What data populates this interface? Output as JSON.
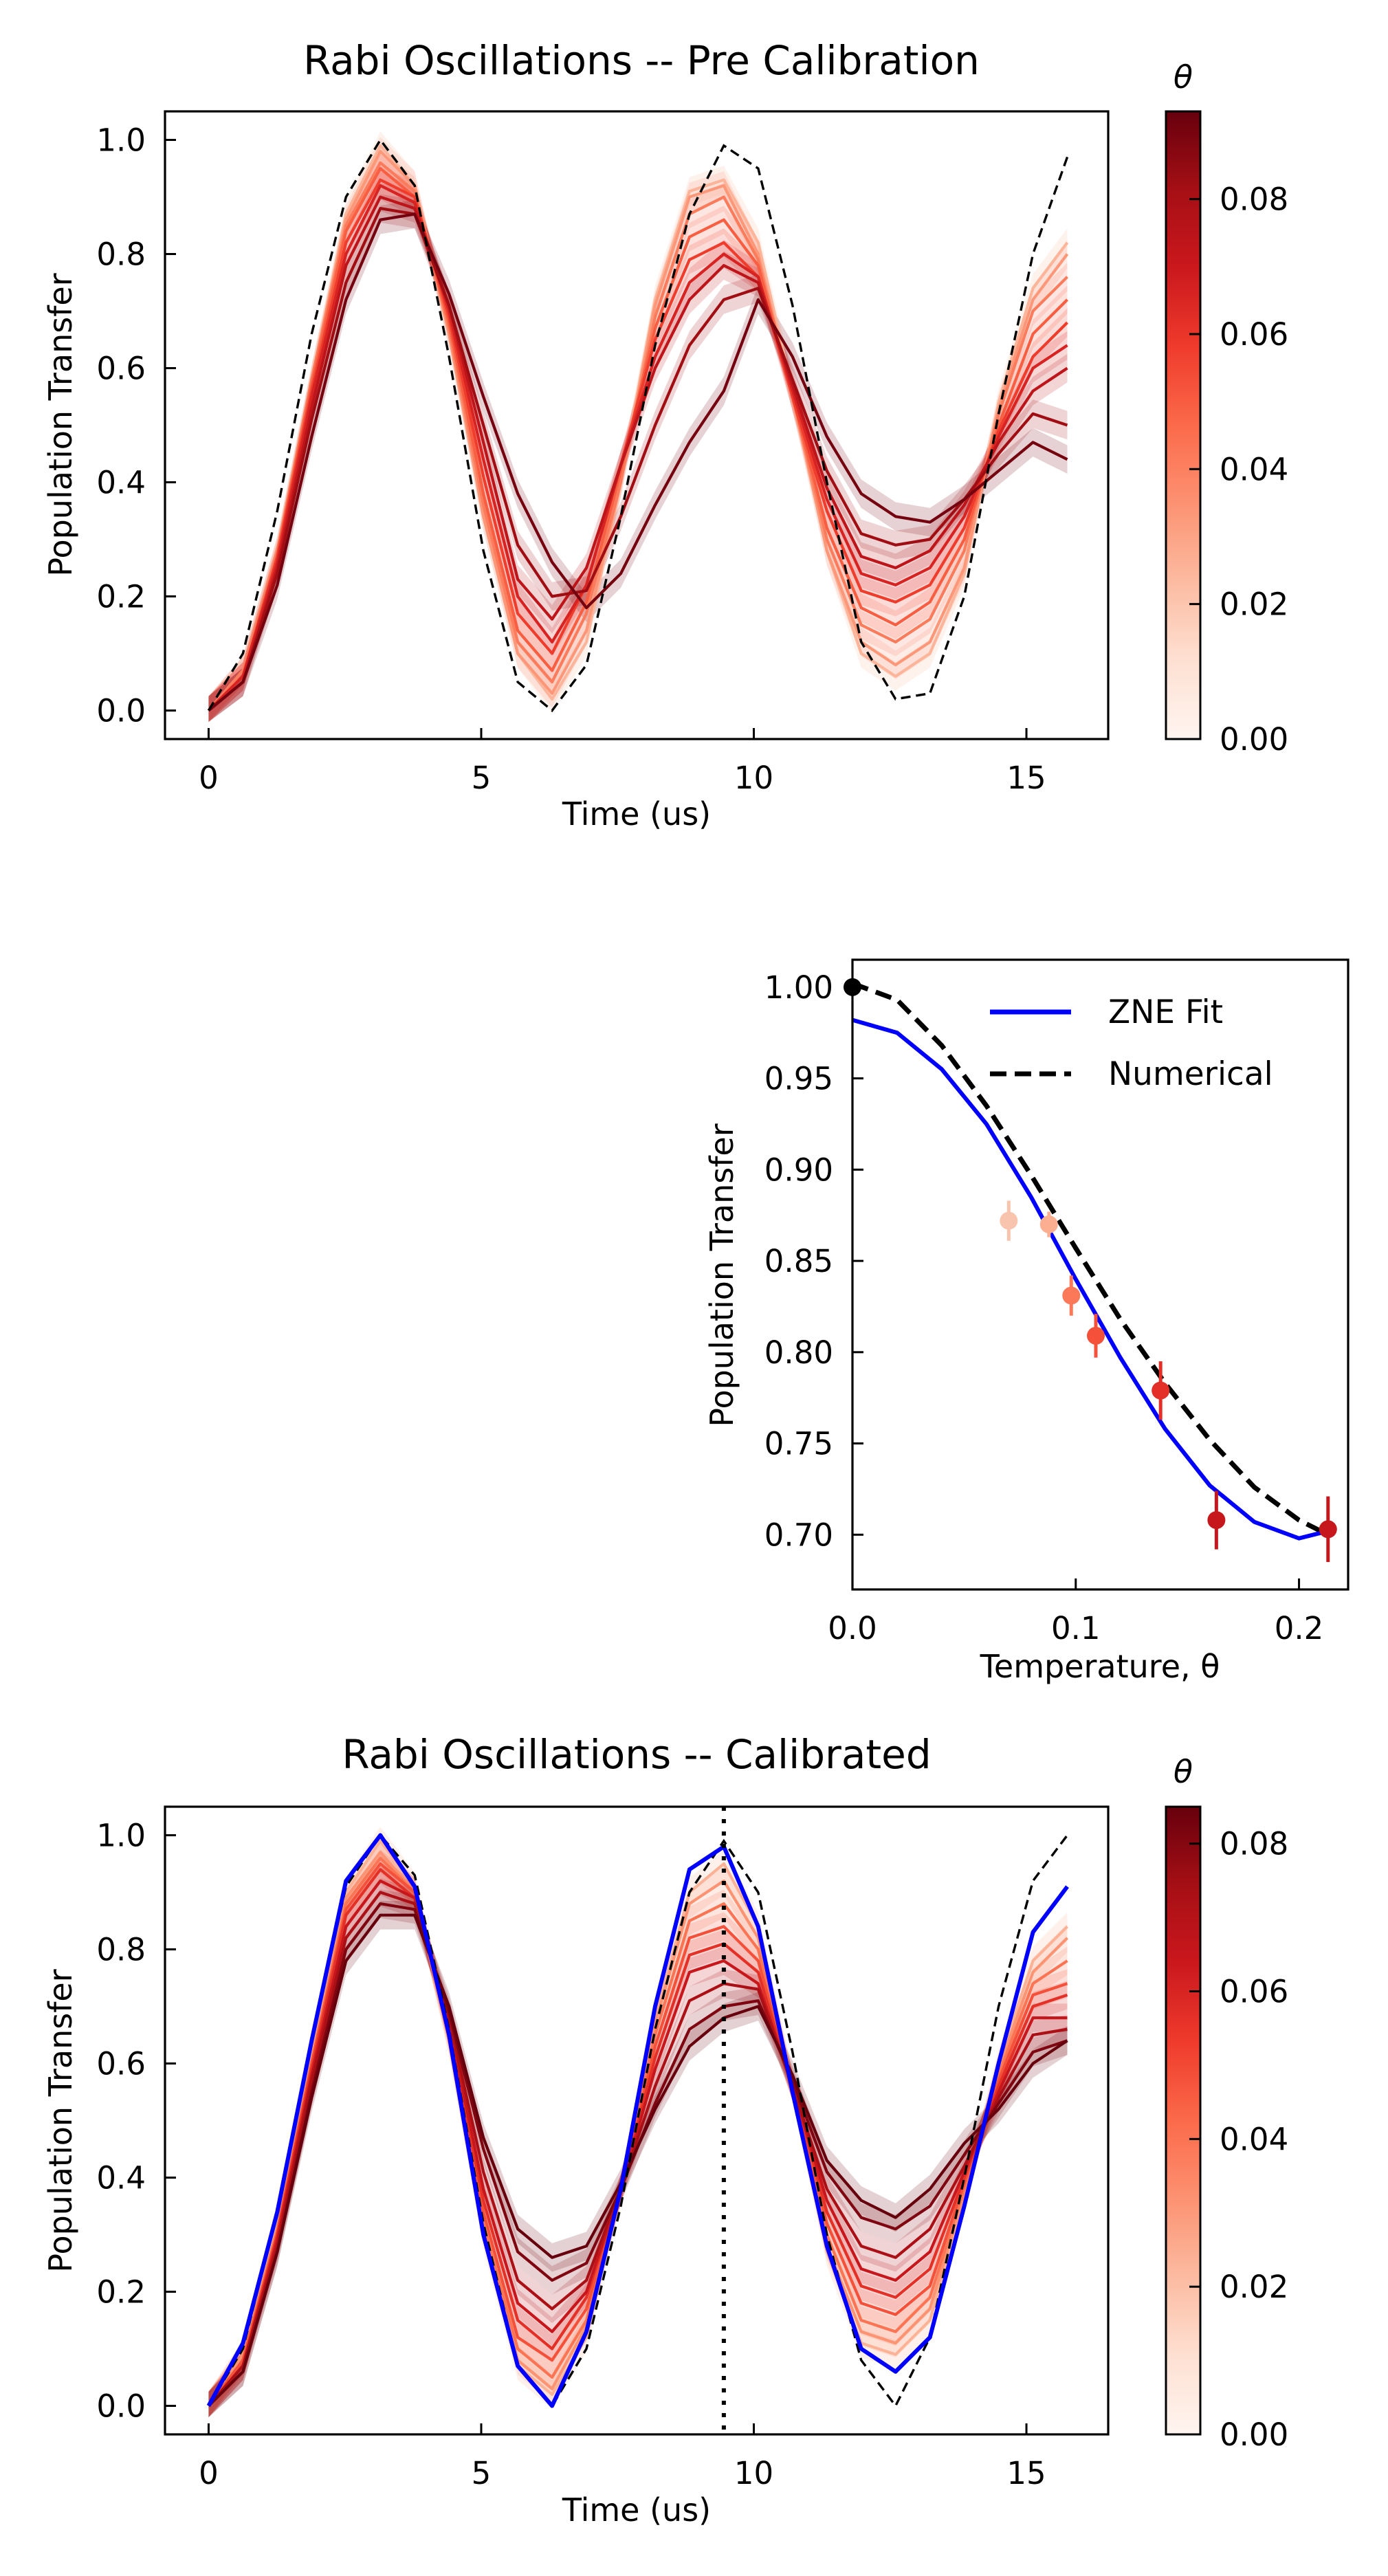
{
  "chart_data": [
    {
      "id": "pre",
      "type": "line",
      "title": "Rabi Oscillations -- Pre Calibration",
      "xlabel": "Time (us)",
      "ylabel": "Population Transfer",
      "xlim": [
        -0.8,
        16.5
      ],
      "ylim": [
        -0.05,
        1.05
      ],
      "xticks": [
        0,
        5,
        10,
        15
      ],
      "yticks": [
        0.0,
        0.2,
        0.4,
        0.6,
        0.8,
        1.0
      ],
      "ytick_labels": [
        "0.0",
        "0.2",
        "0.4",
        "0.6",
        "0.8",
        "1.0"
      ],
      "x": [
        0,
        0.63,
        1.26,
        1.89,
        2.52,
        3.15,
        3.78,
        4.41,
        5.04,
        5.67,
        6.3,
        6.93,
        7.56,
        8.19,
        8.82,
        9.45,
        10.08,
        10.71,
        11.34,
        11.97,
        12.6,
        13.23,
        13.86,
        14.49,
        15.12,
        15.75
      ],
      "colorbar": {
        "label": "θ",
        "min": 0.0,
        "max": 0.093,
        "ticks": [
          0.0,
          0.02,
          0.04,
          0.06,
          0.08
        ],
        "tick_labels": [
          "0.00",
          "0.02",
          "0.04",
          "0.06",
          "0.08"
        ]
      },
      "reference": {
        "name": "numerical",
        "style": "dashed",
        "color": "#000000",
        "values": [
          0.0,
          0.1,
          0.35,
          0.66,
          0.9,
          1.0,
          0.92,
          0.62,
          0.28,
          0.05,
          0.0,
          0.08,
          0.34,
          0.64,
          0.87,
          0.99,
          0.95,
          0.71,
          0.4,
          0.12,
          0.02,
          0.03,
          0.2,
          0.52,
          0.8,
          0.97
        ]
      },
      "series": [
        {
          "theta": 0.01,
          "values": [
            0.0,
            0.07,
            0.28,
            0.58,
            0.87,
            0.99,
            0.92,
            0.66,
            0.34,
            0.1,
            0.02,
            0.12,
            0.4,
            0.72,
            0.91,
            0.93,
            0.82,
            0.56,
            0.28,
            0.1,
            0.06,
            0.1,
            0.24,
            0.54,
            0.74,
            0.82
          ]
        },
        {
          "theta": 0.02,
          "values": [
            0.0,
            0.07,
            0.28,
            0.58,
            0.86,
            0.98,
            0.92,
            0.66,
            0.34,
            0.1,
            0.03,
            0.14,
            0.4,
            0.71,
            0.9,
            0.92,
            0.8,
            0.55,
            0.28,
            0.12,
            0.08,
            0.12,
            0.25,
            0.53,
            0.72,
            0.8
          ]
        },
        {
          "theta": 0.03,
          "values": [
            0.0,
            0.07,
            0.28,
            0.58,
            0.85,
            0.96,
            0.91,
            0.67,
            0.36,
            0.12,
            0.05,
            0.17,
            0.4,
            0.69,
            0.87,
            0.9,
            0.79,
            0.55,
            0.3,
            0.15,
            0.12,
            0.16,
            0.28,
            0.52,
            0.7,
            0.76
          ]
        },
        {
          "theta": 0.04,
          "values": [
            0.0,
            0.06,
            0.27,
            0.57,
            0.84,
            0.95,
            0.9,
            0.68,
            0.38,
            0.14,
            0.07,
            0.19,
            0.42,
            0.67,
            0.83,
            0.86,
            0.78,
            0.55,
            0.32,
            0.18,
            0.15,
            0.19,
            0.3,
            0.5,
            0.66,
            0.72
          ]
        },
        {
          "theta": 0.05,
          "values": [
            0.0,
            0.06,
            0.27,
            0.56,
            0.82,
            0.93,
            0.9,
            0.69,
            0.41,
            0.17,
            0.1,
            0.22,
            0.43,
            0.65,
            0.79,
            0.82,
            0.76,
            0.55,
            0.35,
            0.21,
            0.19,
            0.22,
            0.32,
            0.49,
            0.62,
            0.68
          ]
        },
        {
          "theta": 0.06,
          "values": [
            0.0,
            0.06,
            0.26,
            0.55,
            0.8,
            0.92,
            0.89,
            0.7,
            0.44,
            0.2,
            0.12,
            0.22,
            0.43,
            0.62,
            0.75,
            0.8,
            0.76,
            0.56,
            0.37,
            0.24,
            0.22,
            0.25,
            0.34,
            0.48,
            0.6,
            0.64
          ]
        },
        {
          "theta": 0.07,
          "values": [
            0.0,
            0.05,
            0.25,
            0.53,
            0.78,
            0.9,
            0.88,
            0.71,
            0.47,
            0.23,
            0.16,
            0.25,
            0.43,
            0.6,
            0.72,
            0.78,
            0.75,
            0.57,
            0.39,
            0.27,
            0.25,
            0.28,
            0.36,
            0.47,
            0.56,
            0.6
          ]
        },
        {
          "theta": 0.08,
          "values": [
            0.0,
            0.05,
            0.24,
            0.51,
            0.75,
            0.88,
            0.87,
            0.71,
            0.5,
            0.29,
            0.2,
            0.21,
            0.34,
            0.5,
            0.64,
            0.72,
            0.74,
            0.58,
            0.42,
            0.31,
            0.29,
            0.3,
            0.37,
            0.45,
            0.52,
            0.5
          ]
        },
        {
          "theta": 0.09,
          "values": [
            0.0,
            0.05,
            0.22,
            0.48,
            0.72,
            0.86,
            0.87,
            0.73,
            0.55,
            0.38,
            0.26,
            0.18,
            0.24,
            0.36,
            0.47,
            0.56,
            0.72,
            0.62,
            0.48,
            0.38,
            0.34,
            0.33,
            0.37,
            0.42,
            0.47,
            0.44
          ]
        }
      ]
    },
    {
      "id": "zne",
      "type": "line",
      "title": "",
      "xlabel": "Temperature, θ",
      "ylabel": "Population Transfer",
      "xlim": [
        0.0,
        0.222
      ],
      "ylim": [
        0.67,
        1.015
      ],
      "xticks": [
        0.0,
        0.1,
        0.2
      ],
      "xtick_labels": [
        "0.0",
        "0.1",
        "0.2"
      ],
      "yticks": [
        0.7,
        0.75,
        0.8,
        0.85,
        0.9,
        0.95,
        1.0
      ],
      "ytick_labels": [
        "0.70",
        "0.75",
        "0.80",
        "0.85",
        "0.90",
        "0.95",
        "1.00"
      ],
      "legend": {
        "position": "top-right",
        "entries": [
          {
            "label": "ZNE Fit",
            "color": "#0000ff",
            "style": "solid"
          },
          {
            "label": "Numerical",
            "color": "#000000",
            "style": "dashed"
          }
        ]
      },
      "fit_curve": {
        "name": "ZNE Fit",
        "x": [
          0,
          0.02,
          0.04,
          0.06,
          0.08,
          0.1,
          0.12,
          0.14,
          0.16,
          0.18,
          0.2,
          0.213
        ],
        "y": [
          0.982,
          0.975,
          0.955,
          0.925,
          0.885,
          0.84,
          0.797,
          0.758,
          0.727,
          0.707,
          0.698,
          0.702
        ]
      },
      "numerical_curve": {
        "name": "Numerical",
        "x": [
          0,
          0.02,
          0.04,
          0.06,
          0.08,
          0.1,
          0.12,
          0.14,
          0.16,
          0.18,
          0.2,
          0.213
        ],
        "y": [
          1.002,
          0.993,
          0.968,
          0.935,
          0.897,
          0.857,
          0.818,
          0.783,
          0.752,
          0.726,
          0.708,
          0.7
        ]
      },
      "points": [
        {
          "x": 0.0,
          "y": 1.0,
          "err": 0.0,
          "color": "#000000"
        },
        {
          "x": 0.07,
          "y": 0.872,
          "err": 0.011,
          "color": "#f9c4ad"
        },
        {
          "x": 0.088,
          "y": 0.87,
          "err": 0.007,
          "color": "#fcae91"
        },
        {
          "x": 0.098,
          "y": 0.831,
          "err": 0.011,
          "color": "#fb7858"
        },
        {
          "x": 0.109,
          "y": 0.809,
          "err": 0.012,
          "color": "#f4503a"
        },
        {
          "x": 0.138,
          "y": 0.779,
          "err": 0.016,
          "color": "#e32f27"
        },
        {
          "x": 0.163,
          "y": 0.708,
          "err": 0.016,
          "color": "#c5171c"
        },
        {
          "x": 0.213,
          "y": 0.703,
          "err": 0.018,
          "color": "#c5171c"
        }
      ]
    },
    {
      "id": "cal",
      "type": "line",
      "title": "Rabi Oscillations -- Calibrated",
      "xlabel": "Time (us)",
      "ylabel": "Population Transfer",
      "xlim": [
        -0.8,
        16.5
      ],
      "ylim": [
        -0.05,
        1.05
      ],
      "xticks": [
        0,
        5,
        10,
        15
      ],
      "yticks": [
        0.0,
        0.2,
        0.4,
        0.6,
        0.8,
        1.0
      ],
      "ytick_labels": [
        "0.0",
        "0.2",
        "0.4",
        "0.6",
        "0.8",
        "1.0"
      ],
      "vline_x": 9.45,
      "x": [
        0,
        0.63,
        1.26,
        1.89,
        2.52,
        3.15,
        3.78,
        4.41,
        5.04,
        5.67,
        6.3,
        6.93,
        7.56,
        8.19,
        8.82,
        9.45,
        10.08,
        10.71,
        11.34,
        11.97,
        12.6,
        13.23,
        13.86,
        14.49,
        15.12,
        15.75
      ],
      "colorbar": {
        "label": "θ",
        "min": 0.0,
        "max": 0.085,
        "ticks": [
          0.0,
          0.02,
          0.04,
          0.06,
          0.08
        ],
        "tick_labels": [
          "0.00",
          "0.02",
          "0.04",
          "0.06",
          "0.08"
        ]
      },
      "reference": {
        "name": "numerical",
        "style": "dashed",
        "color": "#000000",
        "values": [
          0.0,
          0.1,
          0.34,
          0.64,
          0.91,
          1.0,
          0.93,
          0.66,
          0.32,
          0.07,
          0.0,
          0.1,
          0.35,
          0.66,
          0.9,
          0.99,
          0.9,
          0.62,
          0.3,
          0.08,
          0.0,
          0.12,
          0.4,
          0.7,
          0.92,
          1.0
        ]
      },
      "zne_series": {
        "name": "zne",
        "color": "#0000ff",
        "values": [
          0.0,
          0.11,
          0.34,
          0.64,
          0.92,
          1.0,
          0.91,
          0.65,
          0.3,
          0.07,
          0.0,
          0.13,
          0.38,
          0.7,
          0.94,
          0.98,
          0.84,
          0.55,
          0.28,
          0.1,
          0.06,
          0.12,
          0.35,
          0.6,
          0.83,
          0.91
        ]
      },
      "series": [
        {
          "theta": 0.01,
          "values": [
            0.0,
            0.09,
            0.32,
            0.62,
            0.9,
            0.99,
            0.91,
            0.64,
            0.3,
            0.07,
            0.02,
            0.12,
            0.38,
            0.68,
            0.9,
            0.95,
            0.84,
            0.56,
            0.27,
            0.11,
            0.09,
            0.15,
            0.36,
            0.6,
            0.78,
            0.84
          ]
        },
        {
          "theta": 0.02,
          "values": [
            0.0,
            0.09,
            0.31,
            0.61,
            0.89,
            0.97,
            0.9,
            0.64,
            0.31,
            0.08,
            0.03,
            0.14,
            0.38,
            0.67,
            0.88,
            0.92,
            0.82,
            0.56,
            0.28,
            0.13,
            0.11,
            0.17,
            0.37,
            0.59,
            0.76,
            0.82
          ]
        },
        {
          "theta": 0.03,
          "values": [
            0.0,
            0.08,
            0.31,
            0.6,
            0.88,
            0.96,
            0.9,
            0.65,
            0.32,
            0.1,
            0.05,
            0.15,
            0.38,
            0.65,
            0.85,
            0.88,
            0.8,
            0.56,
            0.3,
            0.15,
            0.13,
            0.19,
            0.38,
            0.58,
            0.74,
            0.78
          ]
        },
        {
          "theta": 0.04,
          "values": [
            0.0,
            0.08,
            0.3,
            0.6,
            0.87,
            0.95,
            0.9,
            0.66,
            0.34,
            0.12,
            0.08,
            0.17,
            0.38,
            0.63,
            0.82,
            0.84,
            0.78,
            0.56,
            0.32,
            0.18,
            0.16,
            0.21,
            0.39,
            0.57,
            0.72,
            0.74
          ]
        },
        {
          "theta": 0.05,
          "values": [
            0.0,
            0.07,
            0.3,
            0.59,
            0.86,
            0.94,
            0.89,
            0.66,
            0.36,
            0.15,
            0.1,
            0.19,
            0.38,
            0.61,
            0.79,
            0.81,
            0.76,
            0.56,
            0.34,
            0.21,
            0.19,
            0.24,
            0.4,
            0.56,
            0.7,
            0.72
          ]
        },
        {
          "theta": 0.06,
          "values": [
            0.0,
            0.07,
            0.29,
            0.58,
            0.84,
            0.92,
            0.89,
            0.67,
            0.38,
            0.18,
            0.13,
            0.2,
            0.38,
            0.59,
            0.76,
            0.78,
            0.74,
            0.56,
            0.36,
            0.24,
            0.22,
            0.27,
            0.41,
            0.55,
            0.68,
            0.68
          ]
        },
        {
          "theta": 0.07,
          "values": [
            0.0,
            0.07,
            0.28,
            0.57,
            0.82,
            0.9,
            0.88,
            0.68,
            0.41,
            0.22,
            0.17,
            0.22,
            0.38,
            0.56,
            0.71,
            0.74,
            0.73,
            0.56,
            0.38,
            0.28,
            0.26,
            0.31,
            0.42,
            0.54,
            0.65,
            0.66
          ]
        },
        {
          "theta": 0.08,
          "values": [
            0.0,
            0.06,
            0.27,
            0.55,
            0.8,
            0.88,
            0.87,
            0.69,
            0.45,
            0.27,
            0.22,
            0.25,
            0.38,
            0.53,
            0.66,
            0.7,
            0.71,
            0.57,
            0.41,
            0.33,
            0.31,
            0.35,
            0.44,
            0.53,
            0.62,
            0.64
          ]
        },
        {
          "theta": 0.085,
          "values": [
            0.0,
            0.06,
            0.27,
            0.54,
            0.78,
            0.86,
            0.86,
            0.7,
            0.47,
            0.31,
            0.26,
            0.28,
            0.39,
            0.52,
            0.63,
            0.68,
            0.7,
            0.58,
            0.43,
            0.36,
            0.33,
            0.38,
            0.46,
            0.52,
            0.6,
            0.64
          ]
        }
      ]
    }
  ]
}
